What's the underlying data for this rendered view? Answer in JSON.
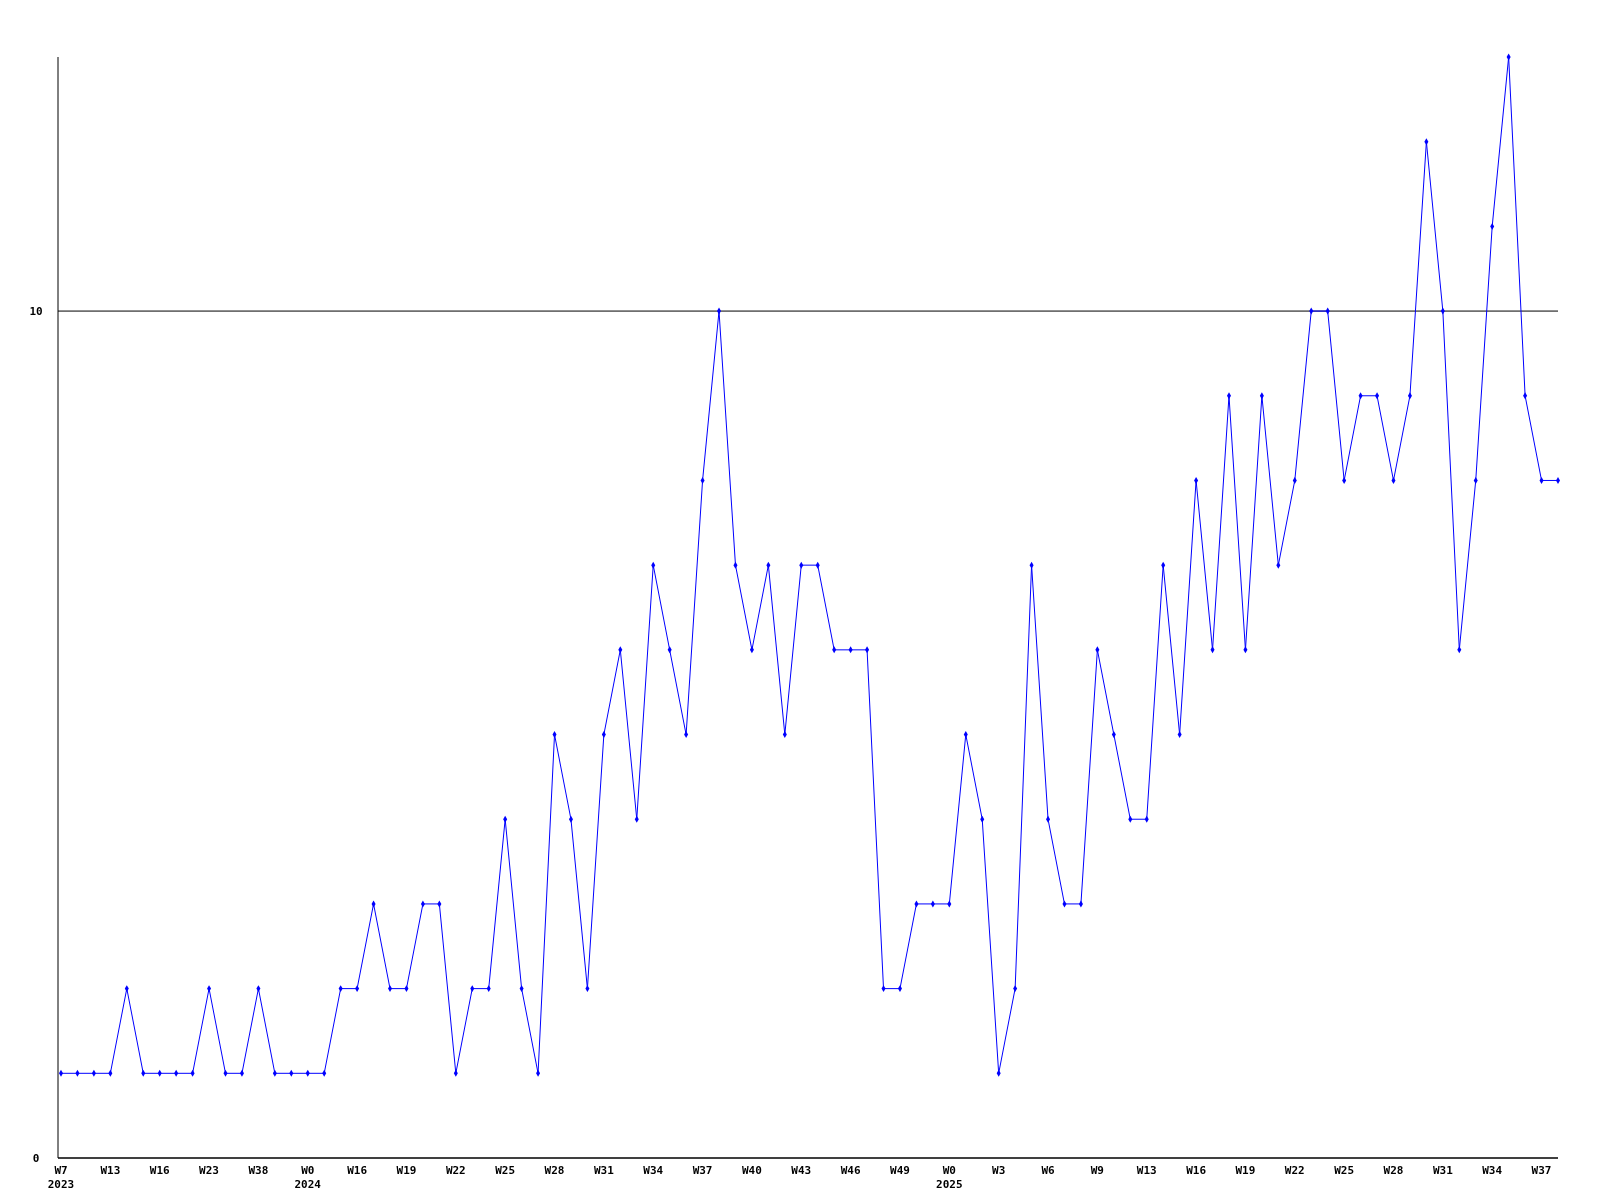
{
  "chart_data": {
    "type": "line",
    "categories": [
      "W7\n2023",
      null,
      null,
      "W13",
      null,
      null,
      "W16",
      null,
      null,
      "W23",
      null,
      null,
      "W38",
      null,
      null,
      "W0\n2024",
      null,
      null,
      "W16",
      null,
      null,
      "W19",
      null,
      null,
      "W22",
      null,
      null,
      "W25",
      null,
      null,
      "W28",
      null,
      null,
      "W31",
      null,
      null,
      "W34",
      null,
      null,
      "W37",
      null,
      null,
      "W40",
      null,
      null,
      "W43",
      null,
      null,
      "W46",
      null,
      null,
      "W49",
      null,
      null,
      "W0\n2025",
      null,
      null,
      "W3",
      null,
      null,
      "W6",
      null,
      null,
      "W9",
      null,
      null,
      "W13",
      null,
      null,
      "W16",
      null,
      null,
      "W19",
      null,
      null,
      "W22",
      null,
      null,
      "W25",
      null,
      null,
      "W28",
      null,
      null,
      "W31",
      null,
      null,
      "W34",
      null,
      null,
      "W37",
      null
    ],
    "series": [
      {
        "color": "#0000ff",
        "values": [
          1,
          1,
          1,
          1,
          2,
          1,
          1,
          1,
          1,
          2,
          1,
          1,
          2,
          1,
          1,
          1,
          1,
          2,
          2,
          3,
          2,
          2,
          3,
          3,
          1,
          2,
          2,
          4,
          2,
          1,
          5,
          4,
          2,
          5,
          6,
          4,
          7,
          6,
          5,
          8,
          10,
          7,
          6,
          7,
          5,
          7,
          7,
          6,
          6,
          6,
          2,
          2,
          3,
          3,
          3,
          5,
          4,
          1,
          2,
          7,
          4,
          3,
          3,
          6,
          5,
          4,
          4,
          7,
          5,
          8,
          6,
          9,
          6,
          9,
          7,
          8,
          10,
          10,
          8,
          9,
          9,
          8,
          9,
          12,
          10,
          6,
          8,
          11,
          13,
          9,
          8,
          8
        ]
      }
    ],
    "ylim": [
      0,
      13
    ],
    "yticks": [
      0,
      10
    ],
    "grid": "y",
    "marker": "diamond",
    "line_style": "solid"
  }
}
